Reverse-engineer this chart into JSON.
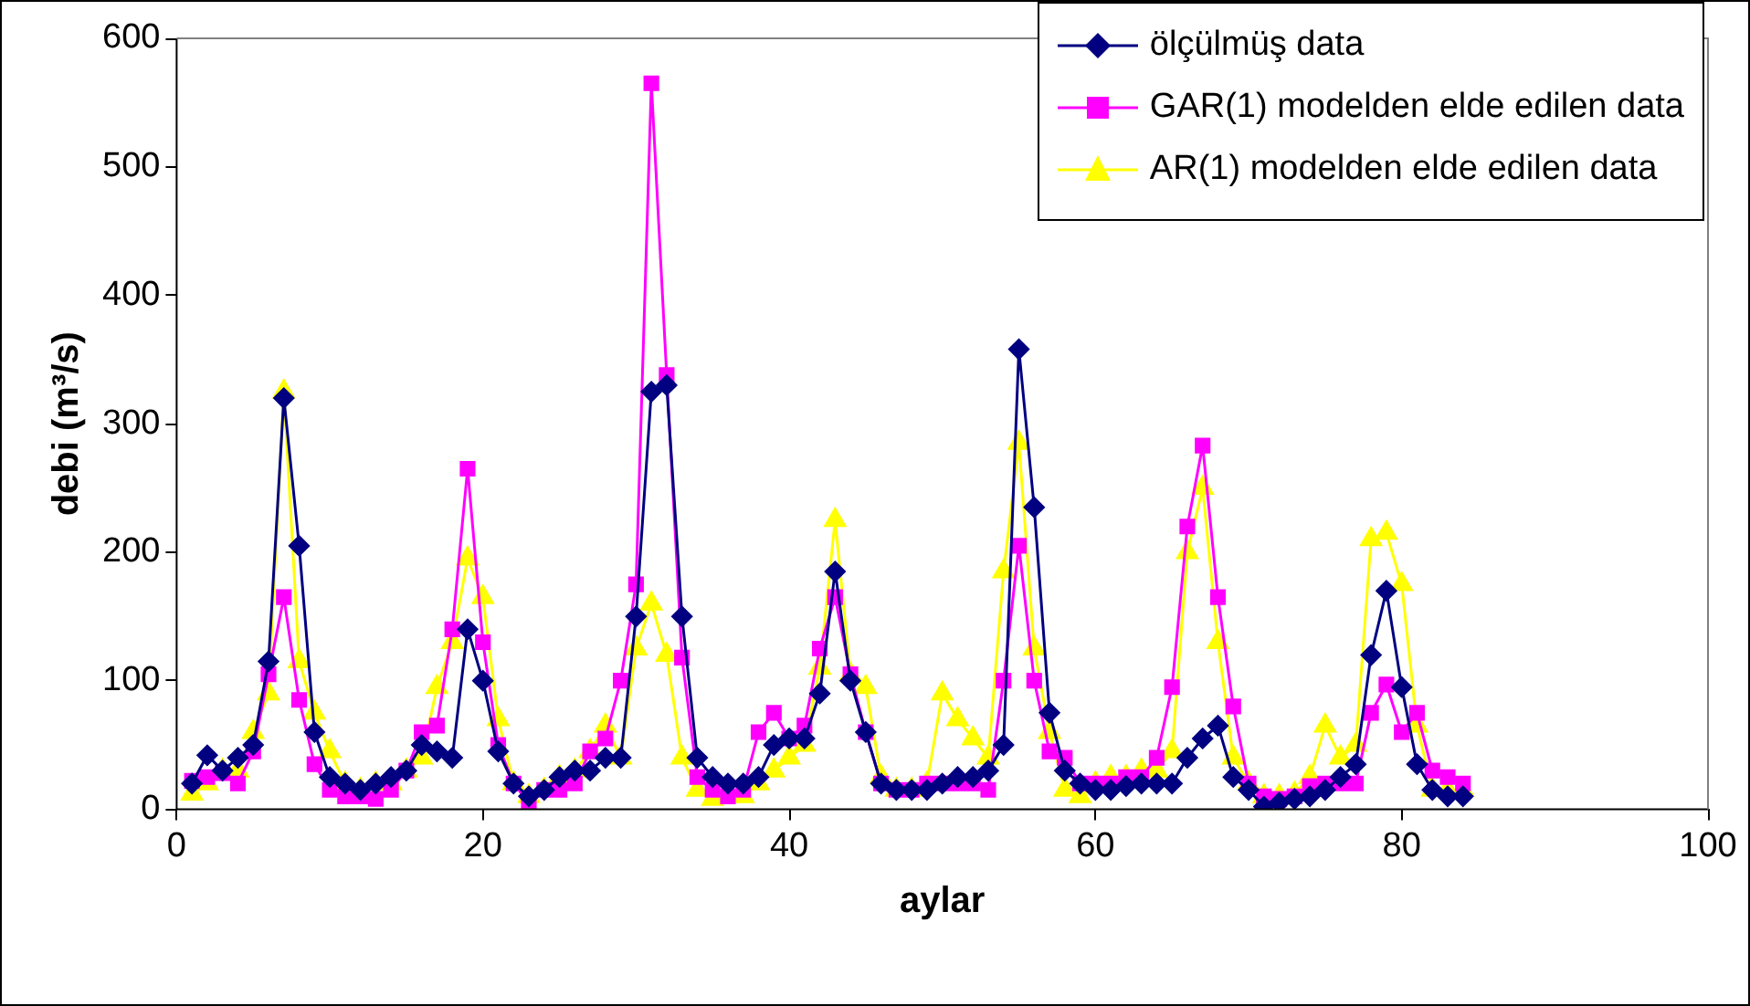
{
  "chart_data": {
    "type": "line",
    "xlabel": "aylar",
    "ylabel": "debi (m³/s)",
    "xlim": [
      0,
      100
    ],
    "xticks": [
      0,
      20,
      40,
      60,
      80,
      100
    ],
    "ylim": [
      0,
      600
    ],
    "yticks": [
      0,
      100,
      200,
      300,
      400,
      500,
      600
    ],
    "grid": false,
    "legend": "top right",
    "x": [
      1,
      2,
      3,
      4,
      5,
      6,
      7,
      8,
      9,
      10,
      11,
      12,
      13,
      14,
      15,
      16,
      17,
      18,
      19,
      20,
      21,
      22,
      23,
      24,
      25,
      26,
      27,
      28,
      29,
      30,
      31,
      32,
      33,
      34,
      35,
      36,
      37,
      38,
      39,
      40,
      41,
      42,
      43,
      44,
      45,
      46,
      47,
      48,
      49,
      50,
      51,
      52,
      53,
      54,
      55,
      56,
      57,
      58,
      59,
      60,
      61,
      62,
      63,
      64,
      65,
      66,
      67,
      68,
      69,
      70,
      71,
      72,
      73,
      74,
      75,
      76,
      77,
      78,
      79,
      80,
      81,
      82,
      83,
      84
    ],
    "series": [
      {
        "name": "ölçülmüş data",
        "color": "#000080",
        "marker": "diamond",
        "values": [
          20,
          42,
          30,
          40,
          50,
          115,
          320,
          205,
          60,
          25,
          20,
          15,
          20,
          25,
          30,
          50,
          45,
          40,
          140,
          100,
          45,
          20,
          10,
          15,
          25,
          30,
          30,
          40,
          40,
          150,
          325,
          330,
          150,
          40,
          25,
          20,
          20,
          25,
          50,
          55,
          55,
          90,
          185,
          100,
          60,
          20,
          15,
          15,
          15,
          20,
          25,
          25,
          30,
          50,
          358,
          235,
          75,
          30,
          20,
          15,
          15,
          18,
          20,
          20,
          20,
          40,
          55,
          65,
          25,
          15,
          2,
          5,
          8,
          10,
          15,
          25,
          35,
          120,
          170,
          95,
          35,
          15,
          10,
          10
        ]
      },
      {
        "name": "GAR(1) modelden elde edilen data",
        "color": "#ff00ff",
        "marker": "square",
        "values": [
          22,
          25,
          28,
          20,
          45,
          105,
          165,
          85,
          35,
          15,
          10,
          10,
          8,
          15,
          30,
          60,
          65,
          140,
          265,
          130,
          50,
          20,
          5,
          15,
          15,
          20,
          45,
          55,
          100,
          175,
          565,
          338,
          118,
          25,
          15,
          10,
          15,
          60,
          75,
          55,
          65,
          125,
          165,
          105,
          60,
          20,
          15,
          15,
          20,
          20,
          20,
          20,
          15,
          100,
          205,
          100,
          45,
          40,
          20,
          20,
          20,
          25,
          25,
          40,
          95,
          220,
          283,
          165,
          80,
          20,
          10,
          8,
          10,
          18,
          20,
          20,
          20,
          75,
          97,
          60,
          75,
          30,
          25,
          20
        ]
      },
      {
        "name": "AR(1) modelden elde edilen data",
        "color": "#ffff00",
        "marker": "triangle",
        "values": [
          12,
          20,
          30,
          30,
          60,
          90,
          325,
          115,
          75,
          45,
          20,
          15,
          20,
          20,
          30,
          40,
          95,
          130,
          195,
          165,
          70,
          20,
          10,
          15,
          25,
          30,
          45,
          65,
          40,
          125,
          160,
          120,
          40,
          15,
          8,
          10,
          10,
          20,
          30,
          40,
          50,
          110,
          225,
          105,
          95,
          25,
          15,
          15,
          20,
          90,
          70,
          55,
          40,
          185,
          285,
          125,
          60,
          15,
          10,
          20,
          25,
          25,
          30,
          30,
          45,
          200,
          250,
          130,
          40,
          20,
          10,
          10,
          12,
          25,
          65,
          40,
          50,
          210,
          215,
          175,
          65,
          15,
          15,
          15
        ]
      }
    ]
  }
}
